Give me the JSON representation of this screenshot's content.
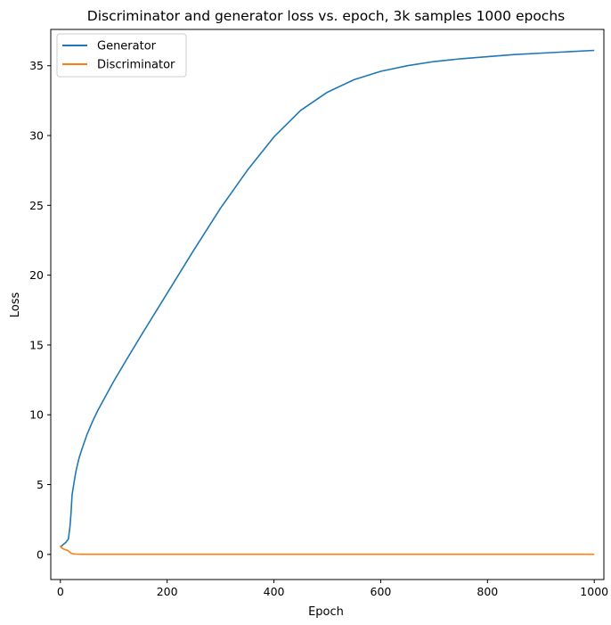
{
  "chart_data": {
    "type": "line",
    "title": "Discriminator and generator loss vs. epoch, 3k samples 1000 epochs",
    "xlabel": "Epoch",
    "ylabel": "Loss",
    "xlim": [
      -18,
      1018
    ],
    "ylim": [
      -1.8,
      37.6
    ],
    "xticks": [
      0,
      200,
      400,
      600,
      800,
      1000
    ],
    "yticks": [
      0,
      5,
      10,
      15,
      20,
      25,
      30,
      35
    ],
    "grid": false,
    "legend_position": "top-left",
    "series": [
      {
        "name": "Generator",
        "color": "#1f77b4",
        "x": [
          0,
          5,
          10,
          15,
          18,
          20,
          22,
          25,
          28,
          30,
          35,
          40,
          50,
          60,
          70,
          80,
          100,
          120,
          150,
          200,
          250,
          300,
          350,
          400,
          450,
          500,
          550,
          600,
          650,
          700,
          750,
          800,
          850,
          900,
          950,
          1000
        ],
        "y": [
          0.5,
          0.7,
          0.85,
          1.1,
          2.0,
          3.0,
          4.3,
          5.0,
          5.7,
          6.1,
          6.9,
          7.5,
          8.6,
          9.5,
          10.3,
          11.0,
          12.4,
          13.7,
          15.6,
          18.7,
          21.8,
          24.8,
          27.5,
          29.9,
          31.8,
          33.1,
          34.0,
          34.6,
          35.0,
          35.3,
          35.5,
          35.65,
          35.8,
          35.9,
          36.0,
          36.1
        ]
      },
      {
        "name": "Discriminator",
        "color": "#ff7f0e",
        "x": [
          0,
          3,
          6,
          10,
          14,
          17,
          20,
          25,
          30,
          40,
          60,
          100,
          200,
          400,
          600,
          800,
          1000
        ],
        "y": [
          0.65,
          0.45,
          0.38,
          0.33,
          0.28,
          0.18,
          0.08,
          0.03,
          0.02,
          0.01,
          0.01,
          0.01,
          0.01,
          0.01,
          0.01,
          0.01,
          0.01
        ]
      }
    ]
  }
}
